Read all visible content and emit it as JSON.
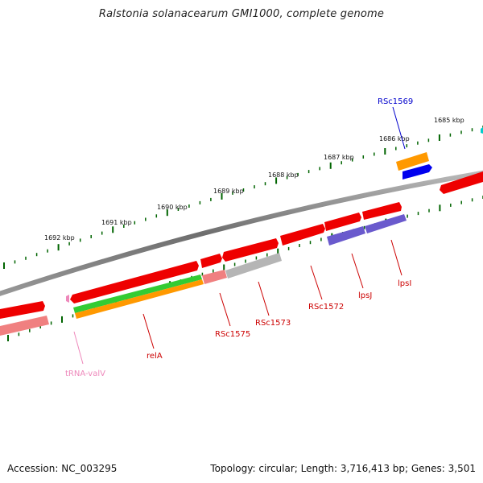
{
  "title": "Ralstonia solanacearum GMI1000, complete genome",
  "footer": {
    "accession": "Accession: NC_003295",
    "stats": "Topology: circular; Length: 3,716,413 bp; Genes: 3,501"
  },
  "kbp_labels": [
    "1685 kbp",
    "1686 kbp",
    "1687 kbp",
    "1688 kbp",
    "1689 kbp",
    "1690 kbp",
    "1691 kbp",
    "1692 kbp"
  ],
  "genes": [
    {
      "label": "RSc1569",
      "color": "#0000cc"
    },
    {
      "label": "lpsI",
      "color": "#cc0000"
    },
    {
      "label": "lpsJ",
      "color": "#cc0000"
    },
    {
      "label": "RSc1572",
      "color": "#cc0000"
    },
    {
      "label": "RSc1573",
      "color": "#cc0000"
    },
    {
      "label": "RSc1575",
      "color": "#cc0000"
    },
    {
      "label": "relA",
      "color": "#cc0000"
    },
    {
      "label": "tRNA-valV",
      "color": "#ee88bb"
    }
  ],
  "colors": {
    "cds": "#ee0000",
    "cds_light": "#f08080",
    "blue": "#0000ee",
    "orange": "#ff9900",
    "green": "#33cc33",
    "purple": "#6a5acd",
    "gray": "#b5b5b5",
    "backbone": "#7d7d7d",
    "tick": "#006400",
    "cyan": "#00cccc"
  }
}
